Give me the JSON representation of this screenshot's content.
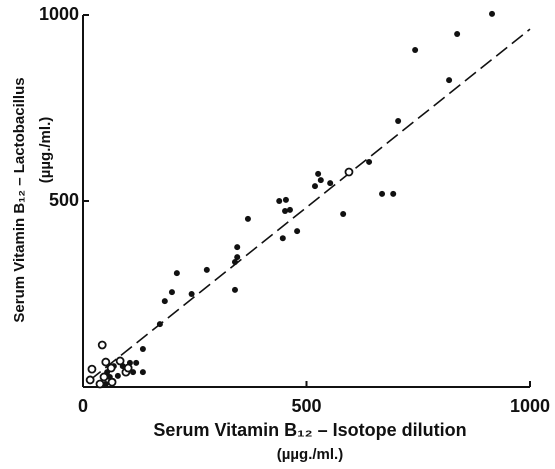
{
  "chart_data": {
    "type": "scatter",
    "xlabel": [
      "Serum Vitamin B₁₂ – Isotope dilution",
      "(µµg./ml.)"
    ],
    "ylabel": [
      "Serum Vitamin B₁₂ – Lactobacillus",
      "(µµg./ml.)"
    ],
    "xlim": [
      0,
      1000
    ],
    "ylim": [
      0,
      1000
    ],
    "xticks": [
      0,
      500,
      1000
    ],
    "yticks": [
      500,
      1000
    ],
    "series": [
      {
        "marker": "filled",
        "color": "#111111",
        "x": [
          915,
          743,
          837,
          819,
          705,
          640,
          669,
          694,
          582,
          526,
          532,
          519,
          553,
          454,
          463,
          452,
          439,
          447,
          479,
          369,
          345,
          345,
          340,
          340,
          277,
          243,
          210,
          199,
          183,
          172,
          134,
          134,
          54,
          60,
          69,
          78,
          89,
          105,
          119,
          67,
          51,
          112
        ],
        "y": [
          1003,
          906,
          949,
          825,
          715,
          605,
          519,
          519,
          465,
          573,
          556,
          540,
          548,
          503,
          476,
          473,
          500,
          400,
          419,
          452,
          376,
          349,
          336,
          261,
          315,
          250,
          306,
          255,
          231,
          169,
          102,
          40,
          40,
          27,
          56,
          30,
          56,
          65,
          65,
          16,
          8,
          40
        ]
      },
      {
        "marker": "open",
        "color": "#111111",
        "x": [
          43,
          595,
          20,
          16,
          47,
          63,
          83,
          96,
          101,
          38,
          65,
          51
        ],
        "y": [
          113,
          578,
          48,
          19,
          27,
          51,
          70,
          40,
          51,
          8,
          13,
          67
        ]
      }
    ],
    "trend_line": {
      "x": [
        15,
        1000
      ],
      "y": [
        18,
        962
      ],
      "dashed": true,
      "color": "#111111"
    }
  }
}
